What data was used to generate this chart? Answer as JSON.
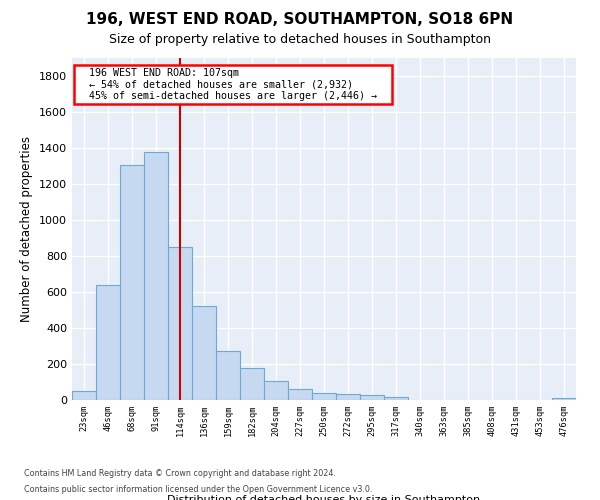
{
  "title1": "196, WEST END ROAD, SOUTHAMPTON, SO18 6PN",
  "title2": "Size of property relative to detached houses in Southampton",
  "xlabel": "Distribution of detached houses by size in Southampton",
  "ylabel": "Number of detached properties",
  "categories": [
    "23sqm",
    "46sqm",
    "68sqm",
    "91sqm",
    "114sqm",
    "136sqm",
    "159sqm",
    "182sqm",
    "204sqm",
    "227sqm",
    "250sqm",
    "272sqm",
    "295sqm",
    "317sqm",
    "340sqm",
    "363sqm",
    "385sqm",
    "408sqm",
    "431sqm",
    "453sqm",
    "476sqm"
  ],
  "values": [
    50,
    640,
    1305,
    1375,
    848,
    520,
    272,
    175,
    103,
    60,
    38,
    35,
    28,
    18,
    0,
    0,
    0,
    0,
    0,
    0,
    12
  ],
  "bar_color": "#c6d9f0",
  "bar_edge_color": "#6aaad4",
  "vline_x": 4,
  "vline_color": "#cc0000",
  "annotation_title": "196 WEST END ROAD: 107sqm",
  "annotation_line1": "← 54% of detached houses are smaller (2,932)",
  "annotation_line2": "45% of semi-detached houses are larger (2,446) →",
  "ylim": [
    0,
    1900
  ],
  "yticks": [
    0,
    200,
    400,
    600,
    800,
    1000,
    1200,
    1400,
    1600,
    1800
  ],
  "footer1": "Contains HM Land Registry data © Crown copyright and database right 2024.",
  "footer2": "Contains public sector information licensed under the Open Government Licence v3.0.",
  "bg_color": "#e8eef8",
  "title1_fontsize": 11,
  "title2_fontsize": 9
}
